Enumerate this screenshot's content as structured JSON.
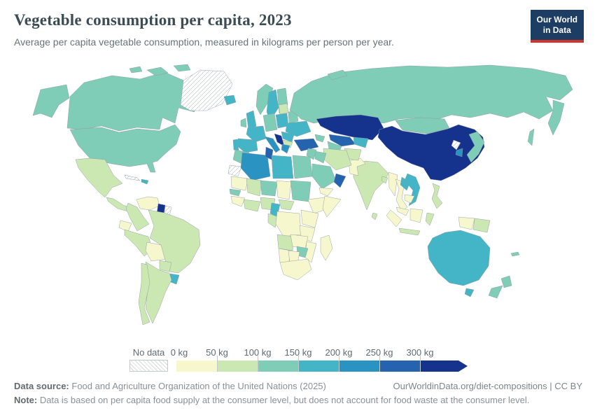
{
  "header": {
    "title": "Vegetable consumption per capita, 2023",
    "subtitle": "Average per capita vegetable consumption, measured in kilograms per person per year.",
    "logo_line1": "Our World",
    "logo_line2": "in Data"
  },
  "legend": {
    "no_data_label": "No data",
    "ticks": [
      "0 kg",
      "50 kg",
      "100 kg",
      "150 kg",
      "200 kg",
      "250 kg",
      "300 kg"
    ],
    "bin_colors": [
      "#f7f7cd",
      "#cbe7b2",
      "#7fccb7",
      "#44b5c6",
      "#2b93c1",
      "#2563ae",
      "#15338c"
    ]
  },
  "footer": {
    "data_source_label": "Data source:",
    "data_source": "Food and Agriculture Organization of the United Nations (2025)",
    "link": "OurWorldinData.org/diet-compositions | CC BY",
    "note_label": "Note:",
    "note": "Data is based on per capita food supply at the consumer level, but does not account for food waste at the consumer level."
  },
  "chart_data": {
    "type": "choropleth_map",
    "title": "Vegetable consumption per capita, 2023",
    "unit": "kilograms per person per year",
    "bins": [
      "0-50 kg",
      "50-100 kg",
      "100-150 kg",
      "150-200 kg",
      "200-250 kg",
      "250-300 kg",
      "300+ kg"
    ],
    "bin_colors": [
      "#f7f7cd",
      "#cbe7b2",
      "#7fccb7",
      "#44b5c6",
      "#2b93c1",
      "#2563ae",
      "#15338c"
    ],
    "no_data_regions": [
      "Greenland",
      "Cuba",
      "Suriname",
      "Western Sahara",
      "North Korea"
    ],
    "regions": [
      {
        "id": "alaska",
        "name": "United States (Alaska)",
        "bin": 2
      },
      {
        "id": "canada",
        "name": "Canada",
        "bin": 2
      },
      {
        "id": "arctic1",
        "name": "Canadian Arctic Islands",
        "bin": 2
      },
      {
        "id": "arctic2",
        "name": "Canadian Arctic Islands",
        "bin": 2
      },
      {
        "id": "arctic3",
        "name": "Canadian Arctic Islands",
        "bin": 2
      },
      {
        "id": "us",
        "name": "United States",
        "bin": 2
      },
      {
        "id": "greenland",
        "name": "Greenland",
        "bin": "no-data"
      },
      {
        "id": "iceland",
        "name": "Iceland",
        "bin": 3
      },
      {
        "id": "mexico",
        "name": "Mexico",
        "bin": 1
      },
      {
        "id": "centralamerica",
        "name": "Central America",
        "bin": 1
      },
      {
        "id": "cuba",
        "name": "Cuba",
        "bin": "no-data"
      },
      {
        "id": "hispaniola",
        "name": "Dominican Republic",
        "bin": 3
      },
      {
        "id": "venezuela",
        "name": "Venezuela",
        "bin": 0
      },
      {
        "id": "guyana",
        "name": "Guyana",
        "bin": 6
      },
      {
        "id": "suriname",
        "name": "Suriname",
        "bin": "no-data"
      },
      {
        "id": "colombia",
        "name": "Colombia",
        "bin": 1
      },
      {
        "id": "ecuador",
        "name": "Ecuador",
        "bin": 0
      },
      {
        "id": "peru",
        "name": "Peru",
        "bin": 1
      },
      {
        "id": "bolivia",
        "name": "Bolivia",
        "bin": 0
      },
      {
        "id": "brazil",
        "name": "Brazil",
        "bin": 1
      },
      {
        "id": "paraguay",
        "name": "Paraguay",
        "bin": 1
      },
      {
        "id": "uruguay",
        "name": "Uruguay",
        "bin": 3
      },
      {
        "id": "argentina",
        "name": "Argentina",
        "bin": 1
      },
      {
        "id": "chile",
        "name": "Chile",
        "bin": 1
      },
      {
        "id": "norway",
        "name": "Norway",
        "bin": 2
      },
      {
        "id": "sweden",
        "name": "Sweden",
        "bin": 3
      },
      {
        "id": "finland",
        "name": "Finland",
        "bin": 2
      },
      {
        "id": "uk",
        "name": "United Kingdom",
        "bin": 3
      },
      {
        "id": "ireland",
        "name": "Ireland",
        "bin": 2
      },
      {
        "id": "france",
        "name": "France",
        "bin": 3
      },
      {
        "id": "spain",
        "name": "Spain",
        "bin": 3
      },
      {
        "id": "portugal",
        "name": "Portugal",
        "bin": 3
      },
      {
        "id": "germany",
        "name": "Germany & Central Europe",
        "bin": 2
      },
      {
        "id": "poland",
        "name": "Poland",
        "bin": 3
      },
      {
        "id": "baltics",
        "name": "Baltic states",
        "bin": 1
      },
      {
        "id": "belarus",
        "name": "Belarus",
        "bin": 2
      },
      {
        "id": "ukraine",
        "name": "Ukraine",
        "bin": 3
      },
      {
        "id": "romania",
        "name": "Romania",
        "bin": 3
      },
      {
        "id": "bulgaria",
        "name": "Bulgaria",
        "bin": 1
      },
      {
        "id": "italy",
        "name": "Italy",
        "bin": 4
      },
      {
        "id": "balkans",
        "name": "Croatia, Serbia & Albania",
        "bin": 6
      },
      {
        "id": "greece",
        "name": "Greece",
        "bin": 4
      },
      {
        "id": "turkey",
        "name": "Turkey",
        "bin": 5
      },
      {
        "id": "caucasus",
        "name": "Caucasus",
        "bin": 2
      },
      {
        "id": "russia",
        "name": "Russia",
        "bin": 2
      },
      {
        "id": "kamchatka",
        "name": "Russia (Far East)",
        "bin": 2
      },
      {
        "id": "sakhalin",
        "name": "Russia (Sakhalin)",
        "bin": 2
      },
      {
        "id": "novaya",
        "name": "Russia (Arctic islands)",
        "bin": 2
      },
      {
        "id": "kazakhstan",
        "name": "Kazakhstan",
        "bin": 6
      },
      {
        "id": "uzbekistan",
        "name": "Uzbekistan",
        "bin": 5
      },
      {
        "id": "turkmenistan",
        "name": "Turkmenistan",
        "bin": 2
      },
      {
        "id": "kyrgyztajik",
        "name": "Kyrgyzstan & Tajikistan",
        "bin": 3
      },
      {
        "id": "mongolia",
        "name": "Mongolia",
        "bin": 2
      },
      {
        "id": "china",
        "name": "China",
        "bin": 6
      },
      {
        "id": "northkorea",
        "name": "North Korea",
        "bin": "no-data"
      },
      {
        "id": "southkorea",
        "name": "South Korea",
        "bin": 4
      },
      {
        "id": "japan",
        "name": "Japan",
        "bin": 2
      },
      {
        "id": "india",
        "name": "India",
        "bin": 1
      },
      {
        "id": "pakistan",
        "name": "Pakistan",
        "bin": 0
      },
      {
        "id": "afghanistan",
        "name": "Afghanistan",
        "bin": 1
      },
      {
        "id": "iran",
        "name": "Iran",
        "bin": 1
      },
      {
        "id": "iraq",
        "name": "Iraq",
        "bin": 2
      },
      {
        "id": "syria",
        "name": "Syria & Levant",
        "bin": 2
      },
      {
        "id": "saudi",
        "name": "Saudi Arabia",
        "bin": 2
      },
      {
        "id": "oman",
        "name": "Oman",
        "bin": 5
      },
      {
        "id": "yemen",
        "name": "Yemen",
        "bin": 0
      },
      {
        "id": "myanmar",
        "name": "Myanmar",
        "bin": 0
      },
      {
        "id": "thailand",
        "name": "Thailand",
        "bin": 0
      },
      {
        "id": "laos",
        "name": "Laos",
        "bin": 3
      },
      {
        "id": "vietnam",
        "name": "Vietnam",
        "bin": 3
      },
      {
        "id": "cambodia",
        "name": "Cambodia",
        "bin": 0
      },
      {
        "id": "malaysia",
        "name": "Malaysia",
        "bin": 0
      },
      {
        "id": "sumatra",
        "name": "Indonesia (Sumatra)",
        "bin": 0
      },
      {
        "id": "java",
        "name": "Indonesia (Java)",
        "bin": 1
      },
      {
        "id": "borneo",
        "name": "Borneo",
        "bin": 0
      },
      {
        "id": "sulawesi",
        "name": "Indonesia (Sulawesi)",
        "bin": 1
      },
      {
        "id": "westpapua",
        "name": "Indonesia (Papua)",
        "bin": 0
      },
      {
        "id": "png",
        "name": "Papua New Guinea",
        "bin": 1
      },
      {
        "id": "philippines",
        "name": "Philippines",
        "bin": 1
      },
      {
        "id": "srilanka",
        "name": "Sri Lanka",
        "bin": 1
      },
      {
        "id": "bangladesh",
        "name": "Bangladesh",
        "bin": 1
      },
      {
        "id": "australia",
        "name": "Australia",
        "bin": 3
      },
      {
        "id": "tasmania",
        "name": "Australia (Tasmania)",
        "bin": 3
      },
      {
        "id": "nznorth",
        "name": "New Zealand (North Island)",
        "bin": 2
      },
      {
        "id": "nzsouth",
        "name": "New Zealand (South Island)",
        "bin": 2
      },
      {
        "id": "fiji",
        "name": "Pacific islands",
        "bin": 2
      },
      {
        "id": "morocco",
        "name": "Morocco",
        "bin": 2
      },
      {
        "id": "wsahara",
        "name": "Western Sahara",
        "bin": "no-data"
      },
      {
        "id": "algeria",
        "name": "Algeria",
        "bin": 4
      },
      {
        "id": "tunisia",
        "name": "Tunisia",
        "bin": 5
      },
      {
        "id": "libya",
        "name": "Libya",
        "bin": 3
      },
      {
        "id": "egypt",
        "name": "Egypt",
        "bin": 2
      },
      {
        "id": "mauritania",
        "name": "Mauritania",
        "bin": 0
      },
      {
        "id": "mali",
        "name": "Mali",
        "bin": 1
      },
      {
        "id": "niger",
        "name": "Niger",
        "bin": 2
      },
      {
        "id": "chad",
        "name": "Chad",
        "bin": 0
      },
      {
        "id": "sudan",
        "name": "Sudan",
        "bin": 2
      },
      {
        "id": "ethiopia",
        "name": "Ethiopia",
        "bin": 0
      },
      {
        "id": "somalia",
        "name": "Somalia",
        "bin": 0
      },
      {
        "id": "senegal",
        "name": "Senegal",
        "bin": 2
      },
      {
        "id": "guinea",
        "name": "Guinea region",
        "bin": 0
      },
      {
        "id": "ivoryghana",
        "name": "Côte d'Ivoire & Ghana",
        "bin": 1
      },
      {
        "id": "nigeria",
        "name": "Nigeria",
        "bin": 1
      },
      {
        "id": "cameroon",
        "name": "Cameroon",
        "bin": 3
      },
      {
        "id": "car",
        "name": "Central African Republic",
        "bin": 1
      },
      {
        "id": "gaboncongo",
        "name": "Gabon & Congo",
        "bin": 1
      },
      {
        "id": "drc",
        "name": "Democratic Republic of Congo",
        "bin": 0
      },
      {
        "id": "ugandakenya",
        "name": "Uganda & Kenya",
        "bin": 0
      },
      {
        "id": "tanzania",
        "name": "Tanzania",
        "bin": 0
      },
      {
        "id": "angola",
        "name": "Angola",
        "bin": 1
      },
      {
        "id": "zambia",
        "name": "Zambia",
        "bin": 0
      },
      {
        "id": "mozambique",
        "name": "Mozambique",
        "bin": 0
      },
      {
        "id": "zimbabwe",
        "name": "Zimbabwe",
        "bin": 2
      },
      {
        "id": "namibia",
        "name": "Namibia",
        "bin": 0
      },
      {
        "id": "botswana",
        "name": "Botswana",
        "bin": 0
      },
      {
        "id": "southafrica",
        "name": "South Africa",
        "bin": 0
      },
      {
        "id": "madagascar",
        "name": "Madagascar",
        "bin": 0
      }
    ]
  }
}
